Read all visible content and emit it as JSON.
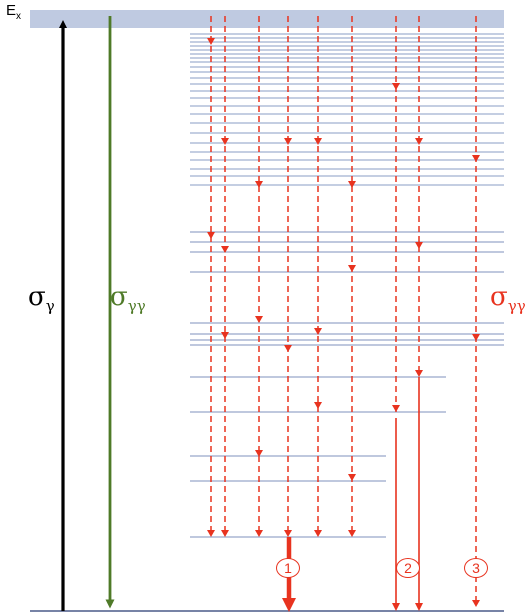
{
  "labels": {
    "energy_label": "E",
    "energy_sub": "x",
    "sigma_total": "σ",
    "sigma_total_sub": "γ",
    "sigma_elastic": "σ",
    "sigma_elastic_sub": "γγ",
    "sigma_inelastic": "σ",
    "sigma_inelastic_sub": "γγ‘"
  },
  "decay_markers": [
    "1",
    "2",
    "3"
  ],
  "colors": {
    "excitation_arrow": "#000000",
    "elastic_arrow": "#4f7a28",
    "cascade_arrows": "#e8331f",
    "levels": "#6e84b2",
    "ground_state": "#4a5a88"
  }
}
